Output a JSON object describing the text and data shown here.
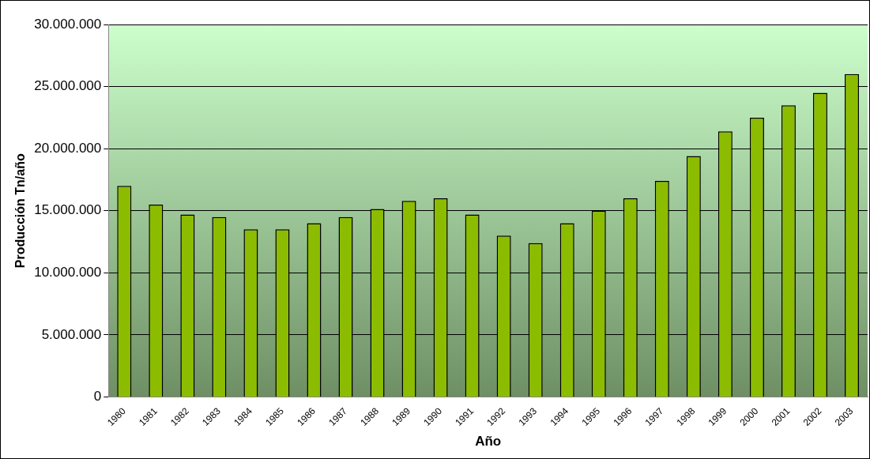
{
  "chart_data": {
    "type": "bar",
    "categories": [
      "1980",
      "1981",
      "1982",
      "1983",
      "1984",
      "1985",
      "1986",
      "1987",
      "1988",
      "1989",
      "1990",
      "1991",
      "1992",
      "1993",
      "1994",
      "1995",
      "1996",
      "1997",
      "1998",
      "1999",
      "2000",
      "2001",
      "2002",
      "2003"
    ],
    "values": [
      17000000,
      15500000,
      14700000,
      14500000,
      13500000,
      13500000,
      14000000,
      14500000,
      15150000,
      15800000,
      16000000,
      14700000,
      13000000,
      12400000,
      14000000,
      15000000,
      16000000,
      17400000,
      19400000,
      21400000,
      22500000,
      23500000,
      24500000,
      26000000
    ],
    "color": "#8cbc00",
    "ylim": [
      0,
      30000000
    ],
    "yticks": [
      {
        "value": 0,
        "label": "0"
      },
      {
        "value": 5000000,
        "label": "5.000.000"
      },
      {
        "value": 10000000,
        "label": "10.000.000"
      },
      {
        "value": 15000000,
        "label": "15.000.000"
      },
      {
        "value": 20000000,
        "label": "20.000.000"
      },
      {
        "value": 25000000,
        "label": "25.000.000"
      },
      {
        "value": 30000000,
        "label": "30.000.000"
      }
    ],
    "xlabel": "Año",
    "ylabel": "Producción Tn/año",
    "grid": "y"
  }
}
